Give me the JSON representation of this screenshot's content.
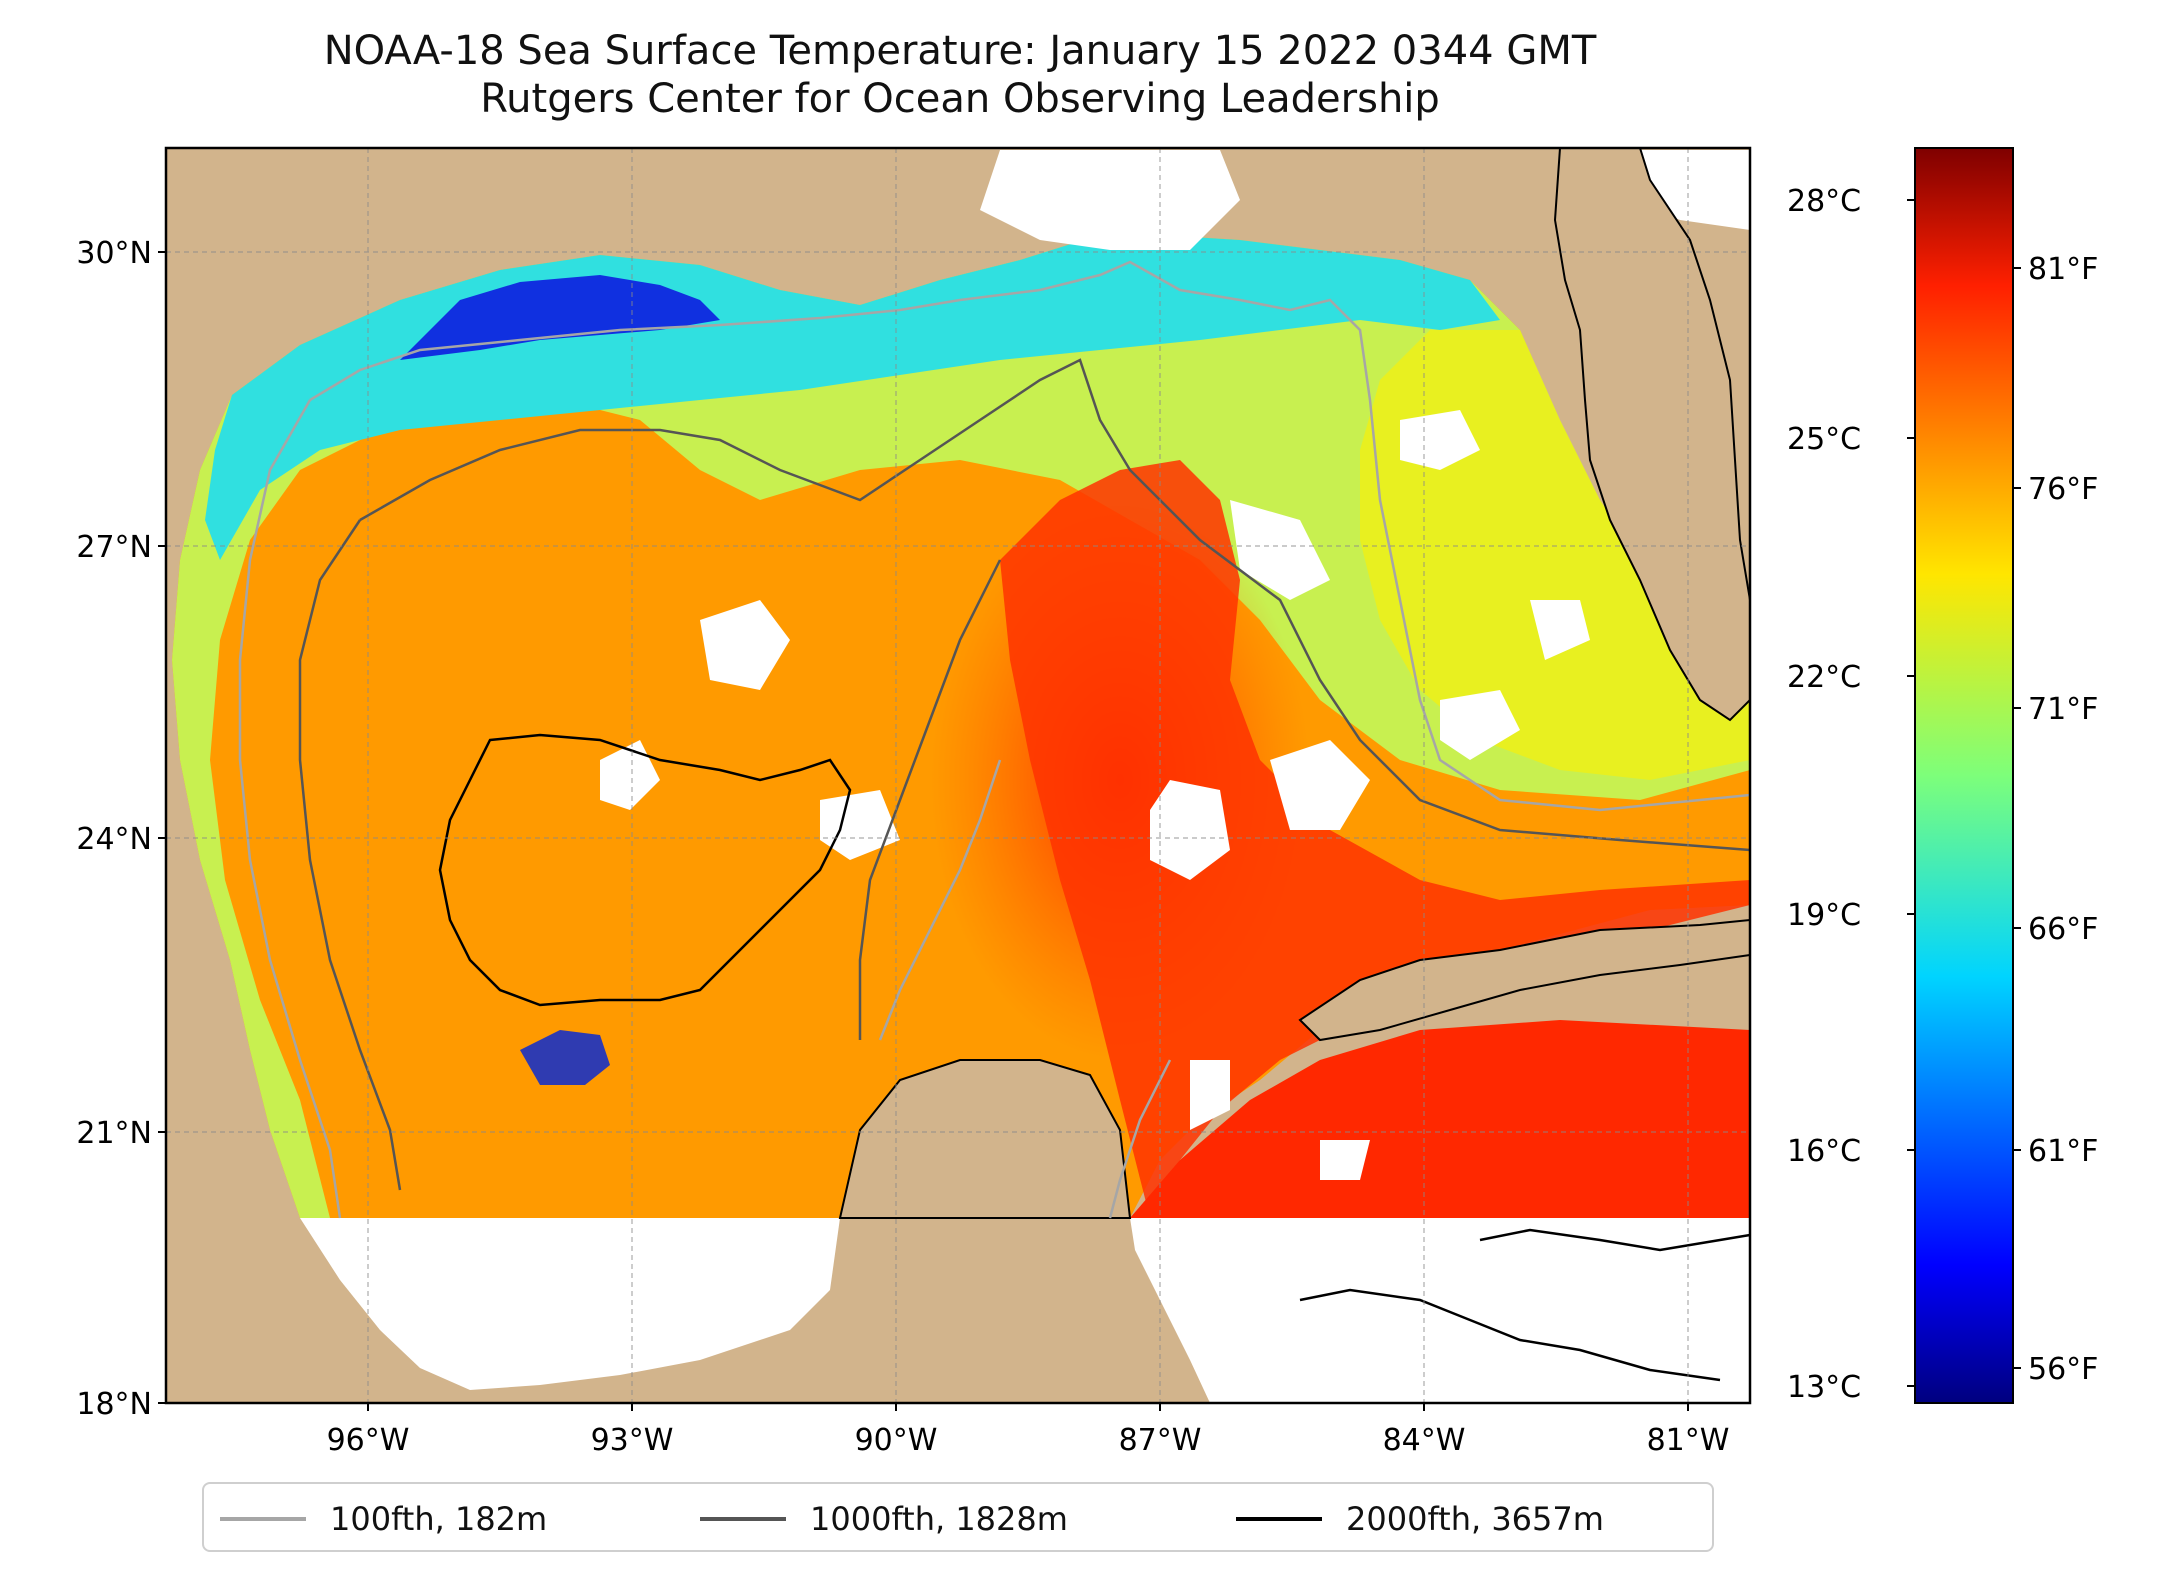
{
  "title": "NOAA-18 Sea Surface Temperature: January 15 2022 0344 GMT",
  "subtitle": "Rutgers Center for Ocean Observing Leadership",
  "map": {
    "extent": {
      "lon_min": -98.2,
      "lon_max": -80.3,
      "lat_min": 18.0,
      "lat_max": 31.0
    },
    "lat_ticks": [
      {
        "value": 30,
        "label": "30°N"
      },
      {
        "value": 27,
        "label": "27°N"
      },
      {
        "value": 24,
        "label": "24°N"
      },
      {
        "value": 21,
        "label": "21°N"
      },
      {
        "value": 18,
        "label": "18°N"
      }
    ],
    "lon_ticks": [
      {
        "value": -96,
        "label": "96°W"
      },
      {
        "value": -93,
        "label": "93°W"
      },
      {
        "value": -90,
        "label": "90°W"
      },
      {
        "value": -87,
        "label": "87°W"
      },
      {
        "value": -84,
        "label": "84°W"
      },
      {
        "value": -81,
        "label": "81°W"
      }
    ],
    "gridlines": true,
    "colors": {
      "land": "#d2b48c",
      "no_data": "#ffffff",
      "coastline": "#000000"
    }
  },
  "colorbar": {
    "colormap": "jet",
    "range_c": [
      12.8,
      29.0
    ],
    "celsius_ticks": [
      {
        "value": 28,
        "label": "28°C"
      },
      {
        "value": 25,
        "label": "25°C"
      },
      {
        "value": 22,
        "label": "22°C"
      },
      {
        "value": 19,
        "label": "19°C"
      },
      {
        "value": 16,
        "label": "16°C"
      },
      {
        "value": 13,
        "label": "13°C"
      }
    ],
    "fahrenheit_ticks": [
      {
        "value": 81,
        "label": "81°F"
      },
      {
        "value": 76,
        "label": "76°F"
      },
      {
        "value": 71,
        "label": "71°F"
      },
      {
        "value": 66,
        "label": "66°F"
      },
      {
        "value": 61,
        "label": "61°F"
      },
      {
        "value": 56,
        "label": "56°F"
      }
    ]
  },
  "legend": [
    {
      "label": "100fth, 182m",
      "color": "#a6a6a6"
    },
    {
      "label": "1000fth, 1828m",
      "color": "#555555"
    },
    {
      "label": "2000fth, 3657m",
      "color": "#000000"
    }
  ]
}
